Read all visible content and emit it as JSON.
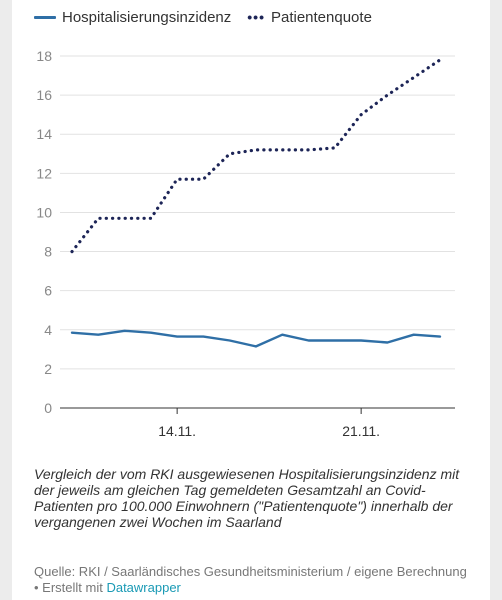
{
  "legend": {
    "series1": "Hospitalisierungsinzidenz",
    "series2": "Patientenquote"
  },
  "caption": "Vergleich der vom RKI ausgewiesenen Hospitalisierungsinzidenz mit der jeweils am gleichen Tag gemeldeten Gesamtzahl an Covid-Patienten pro 100.000 Einwohnern (\"Patientenquote\") innerhalb der vergangenen zwei Wochen im Saarland",
  "source": {
    "text": "Quelle: RKI / Saarländisches Gesundheitsministerium / eigene Berechnung • Erstellt mit ",
    "link": "Datawrapper"
  },
  "colors": {
    "series1": "#2f6fa6",
    "series2": "#1d2557"
  },
  "chart_data": {
    "type": "line",
    "x_ticks": [
      "14.11.",
      "21.11."
    ],
    "x_tick_index": [
      4,
      11
    ],
    "y_ticks": [
      0,
      2,
      4,
      6,
      8,
      10,
      12,
      14,
      16,
      18
    ],
    "ylim": [
      0,
      18
    ],
    "grid": true,
    "legend_position": "top-left",
    "series": [
      {
        "name": "Hospitalisierungsinzidenz",
        "style": "solid",
        "values": [
          3.85,
          3.75,
          3.95,
          3.85,
          3.65,
          3.65,
          3.45,
          3.15,
          3.75,
          3.45,
          3.45,
          3.45,
          3.35,
          3.75,
          3.65
        ]
      },
      {
        "name": "Patientenquote",
        "style": "dotted",
        "values": [
          8.0,
          9.7,
          9.7,
          9.7,
          11.7,
          11.7,
          13.0,
          13.2,
          13.2,
          13.2,
          13.3,
          15.0,
          16.0,
          16.9,
          17.8
        ]
      }
    ]
  }
}
